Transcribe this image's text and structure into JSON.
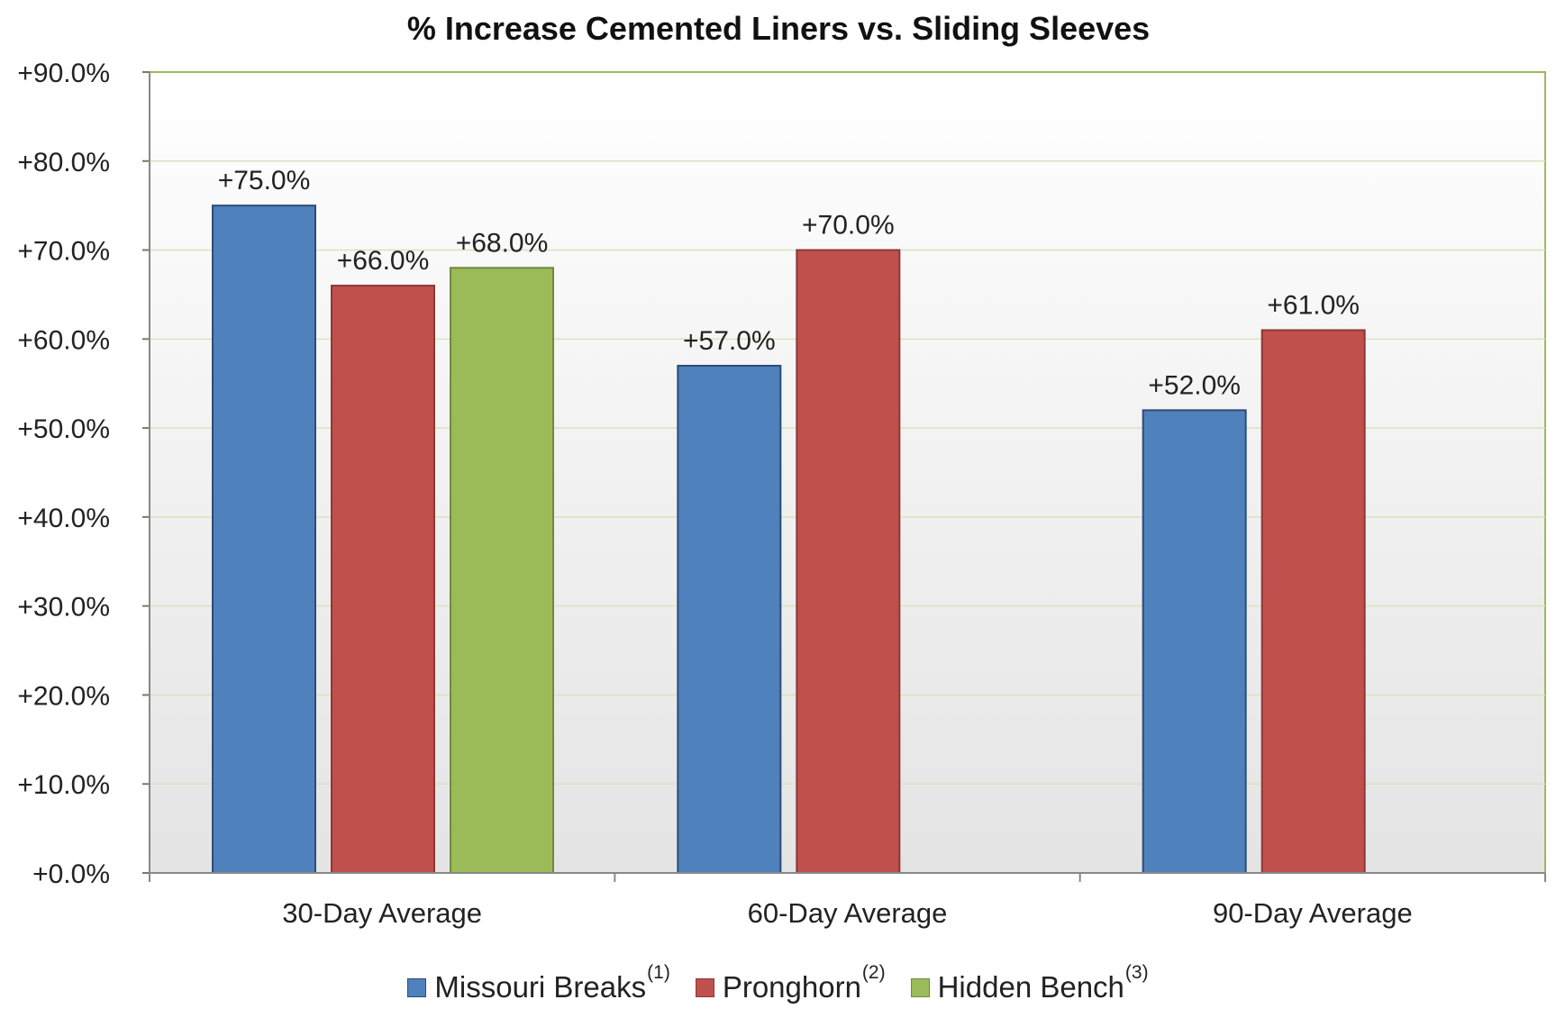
{
  "chart_data": {
    "type": "bar",
    "title": "% Increase Cemented Liners vs. Sliding Sleeves",
    "xlabel": "",
    "ylabel": "",
    "ylim": [
      0,
      90
    ],
    "yticks": [
      "+0.0%",
      "+10.0%",
      "+20.0%",
      "+30.0%",
      "+40.0%",
      "+50.0%",
      "+60.0%",
      "+70.0%",
      "+80.0%",
      "+90.0%"
    ],
    "categories": [
      "30-Day Average",
      "60-Day Average",
      "90-Day Average"
    ],
    "series": [
      {
        "name": "Missouri Breaks",
        "note": "(1)",
        "color": "#4f81bd",
        "edge": "#2c4d75",
        "values": [
          75.0,
          57.0,
          52.0
        ],
        "labels": [
          "+75.0%",
          "+57.0%",
          "+52.0%"
        ]
      },
      {
        "name": "Pronghorn",
        "note": "(2)",
        "color": "#c0504d",
        "edge": "#8c3836",
        "values": [
          66.0,
          70.0,
          61.0
        ],
        "labels": [
          "+66.0%",
          "+70.0%",
          "+61.0%"
        ]
      },
      {
        "name": "Hidden Bench",
        "note": "(3)",
        "color": "#9bbb59",
        "edge": "#71893f",
        "values": [
          68.0,
          null,
          null
        ],
        "labels": [
          "+68.0%",
          null,
          null
        ]
      }
    ],
    "grid": true,
    "legend_position": "bottom-center",
    "plot_border_color": "#9bbb59",
    "gridline_color": "#d7e4bd"
  }
}
